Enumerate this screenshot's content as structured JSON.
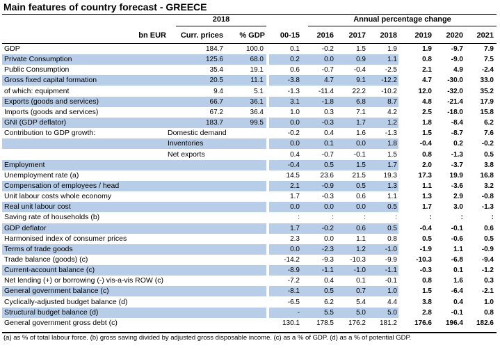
{
  "title": "Main features of country forecast - GREECE",
  "colors": {
    "band": "#b8cde8",
    "rule": "#000000"
  },
  "header": {
    "year_2018": "2018",
    "annual_change": "Annual percentage change",
    "col_bn_eur": "bn EUR",
    "col_curr_prices": "Curr. prices",
    "col_pct_gdp": "% GDP",
    "years": [
      "00-15",
      "2016",
      "2017",
      "2018",
      "2019",
      "2020",
      "2021"
    ]
  },
  "rows": [
    {
      "label": "GDP",
      "sub": "",
      "shaded": false,
      "curr": "184.7",
      "pct": "100.0",
      "v": [
        "0.1",
        "-0.2",
        "1.5",
        "1.9",
        "1.9",
        "-9.7",
        "7.9"
      ]
    },
    {
      "label": "Private Consumption",
      "sub": "",
      "shaded": true,
      "curr": "125.6",
      "pct": "68.0",
      "v": [
        "0.2",
        "0.0",
        "0.9",
        "1.1",
        "0.8",
        "-9.0",
        "7.5"
      ]
    },
    {
      "label": "Public Consumption",
      "sub": "",
      "shaded": false,
      "curr": "35.4",
      "pct": "19.1",
      "v": [
        "0.6",
        "-0.7",
        "-0.4",
        "-2.5",
        "2.1",
        "4.9",
        "-2.4"
      ]
    },
    {
      "label": "Gross fixed capital formation",
      "sub": "",
      "shaded": true,
      "curr": "20.5",
      "pct": "11.1",
      "v": [
        "-3.8",
        "4.7",
        "9.1",
        "-12.2",
        "4.7",
        "-30.0",
        "33.0"
      ]
    },
    {
      "label": "of which: equipment",
      "sub": "",
      "shaded": false,
      "curr": "9.4",
      "pct": "5.1",
      "v": [
        "-1.3",
        "-11.4",
        "22.2",
        "-10.2",
        "12.0",
        "-32.0",
        "35.2"
      ]
    },
    {
      "label": "Exports (goods and services)",
      "sub": "",
      "shaded": true,
      "curr": "66.7",
      "pct": "36.1",
      "v": [
        "3.1",
        "-1.8",
        "6.8",
        "8.7",
        "4.8",
        "-21.4",
        "17.9"
      ]
    },
    {
      "label": "Imports (goods and services)",
      "sub": "",
      "shaded": false,
      "curr": "67.2",
      "pct": "36.4",
      "v": [
        "1.0",
        "0.3",
        "7.1",
        "4.2",
        "2.5",
        "-18.0",
        "15.8"
      ]
    },
    {
      "label": "GNI (GDP deflator)",
      "sub": "",
      "shaded": true,
      "curr": "183.7",
      "pct": "99.5",
      "v": [
        "0.0",
        "-0.3",
        "1.7",
        "1.2",
        "1.8",
        "-8.4",
        "6.2"
      ]
    },
    {
      "label": "Contribution to GDP growth:",
      "sub": "Domestic demand",
      "shaded": false,
      "curr": "",
      "pct": "",
      "v": [
        "-0.2",
        "0.4",
        "1.6",
        "-1.3",
        "1.5",
        "-8.7",
        "7.6"
      ]
    },
    {
      "label": "",
      "sub": "Inventories",
      "shaded": true,
      "curr": "",
      "pct": "",
      "v": [
        "0.0",
        "0.1",
        "0.0",
        "1.8",
        "-0.4",
        "0.2",
        "-0.2"
      ]
    },
    {
      "label": "",
      "sub": "Net exports",
      "shaded": false,
      "curr": "",
      "pct": "",
      "v": [
        "0.4",
        "-0.7",
        "-0.1",
        "1.5",
        "0.8",
        "-1.3",
        "0.5"
      ]
    },
    {
      "label": "Employment",
      "sub": "",
      "shaded": true,
      "curr": "",
      "pct": "",
      "v": [
        "-0.4",
        "0.5",
        "1.5",
        "1.7",
        "2.0",
        "-3.7",
        "3.8"
      ]
    },
    {
      "label": "Unemployment rate (a)",
      "sub": "",
      "shaded": false,
      "curr": "",
      "pct": "",
      "v": [
        "14.5",
        "23.6",
        "21.5",
        "19.3",
        "17.3",
        "19.9",
        "16.8"
      ]
    },
    {
      "label": "Compensation of employees / head",
      "sub": "",
      "shaded": true,
      "curr": "",
      "pct": "",
      "v": [
        "2.1",
        "-0.9",
        "0.5",
        "1.3",
        "1.1",
        "-3.6",
        "3.2"
      ]
    },
    {
      "label": "Unit labour costs whole economy",
      "sub": "",
      "shaded": false,
      "curr": "",
      "pct": "",
      "v": [
        "1.7",
        "-0.3",
        "0.6",
        "1.1",
        "1.3",
        "2.9",
        "-0.8"
      ]
    },
    {
      "label": "Real unit labour cost",
      "sub": "",
      "shaded": true,
      "curr": "",
      "pct": "",
      "v": [
        "0.0",
        "0.0",
        "0.0",
        "0.5",
        "1.7",
        "3.0",
        "-1.3"
      ]
    },
    {
      "label": "Saving rate of households (b)",
      "sub": "",
      "shaded": false,
      "curr": "",
      "pct": "",
      "v": [
        ":",
        ":",
        ":",
        ":",
        ":",
        ":",
        ":"
      ]
    },
    {
      "label": "GDP deflator",
      "sub": "",
      "shaded": true,
      "curr": "",
      "pct": "",
      "v": [
        "1.7",
        "-0.2",
        "0.6",
        "0.5",
        "-0.4",
        "-0.1",
        "0.6"
      ]
    },
    {
      "label": "Harmonised index of consumer prices",
      "sub": "",
      "shaded": false,
      "curr": "",
      "pct": "",
      "v": [
        "2.3",
        "0.0",
        "1.1",
        "0.8",
        "0.5",
        "-0.6",
        "0.5"
      ]
    },
    {
      "label": "Terms of trade goods",
      "sub": "",
      "shaded": true,
      "curr": "",
      "pct": "",
      "v": [
        "0.0",
        "-2.3",
        "1.2",
        "-1.0",
        "-1.9",
        "1.1",
        "-0.9"
      ]
    },
    {
      "label": "Trade balance (goods) (c)",
      "sub": "",
      "shaded": false,
      "curr": "",
      "pct": "",
      "v": [
        "-14.2",
        "-9.3",
        "-10.3",
        "-9.9",
        "-10.3",
        "-6.8",
        "-9.4"
      ]
    },
    {
      "label": "Current-account balance (c)",
      "sub": "",
      "shaded": true,
      "curr": "",
      "pct": "",
      "v": [
        "-8.9",
        "-1.1",
        "-1.0",
        "-1.1",
        "-0.3",
        "0.1",
        "-1.2"
      ]
    },
    {
      "label": "Net lending (+) or borrowing (-) vis-a-vis ROW (c)",
      "sub": "",
      "shaded": false,
      "curr": "",
      "pct": "",
      "v": [
        "-7.2",
        "0.4",
        "0.1",
        "-0.1",
        "0.8",
        "1.6",
        "0.3"
      ]
    },
    {
      "label": "General government balance (c)",
      "sub": "",
      "shaded": true,
      "curr": "",
      "pct": "",
      "v": [
        "-8.1",
        "0.5",
        "0.7",
        "1.0",
        "1.5",
        "-6.4",
        "-2.1"
      ]
    },
    {
      "label": "Cyclically-adjusted budget balance (d)",
      "sub": "",
      "shaded": false,
      "curr": "",
      "pct": "",
      "v": [
        "-6.5",
        "6.2",
        "5.4",
        "4.4",
        "3.8",
        "0.4",
        "1.0"
      ]
    },
    {
      "label": "Structural budget balance (d)",
      "sub": "",
      "shaded": true,
      "curr": "",
      "pct": "",
      "v": [
        "-",
        "5.5",
        "5.0",
        "5.0",
        "2.8",
        "-0.1",
        "0.8"
      ]
    },
    {
      "label": "General government gross debt (c)",
      "sub": "",
      "shaded": false,
      "curr": "",
      "pct": "",
      "v": [
        "130.1",
        "178.5",
        "176.2",
        "181.2",
        "176.6",
        "196.4",
        "182.6"
      ]
    }
  ],
  "footnote": "(a) as % of total labour force. (b) gross saving divided by adjusted gross disposable income. (c) as a % of GDP. (d) as a % of potential GDP."
}
